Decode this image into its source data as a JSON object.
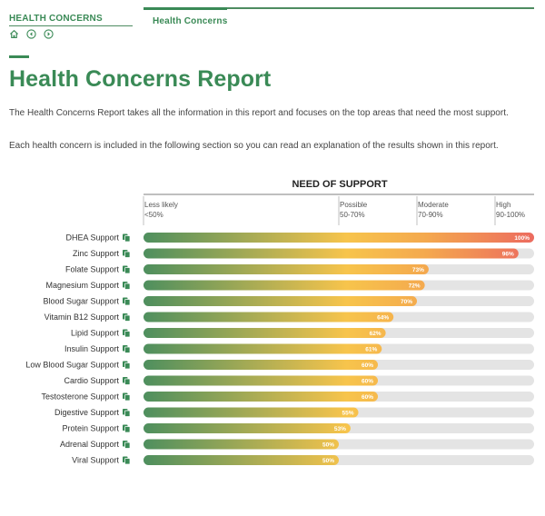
{
  "nav": {
    "section_title": "HEALTH CONCERNS",
    "tab_title": "Health Concerns",
    "icons": [
      "home-icon",
      "prev-icon",
      "next-icon"
    ]
  },
  "page": {
    "title": "Health Concerns Report",
    "paragraph1": "The Health Concerns Report takes all the information in this report and focuses on the top areas that need the most support.",
    "paragraph2": "Each health concern is included in the following section so you can read an explanation of the results shown in this report."
  },
  "colors": {
    "brand_green": "#3a8a56",
    "bar_low": "#4e8f5e",
    "bar_mid": "#f7c44c",
    "bar_high": "#ec6b5f",
    "track": "#e4e4e4"
  },
  "chart_data": {
    "type": "bar",
    "orientation": "horizontal",
    "title": "NEED OF SUPPORT",
    "xlim": [
      0,
      100
    ],
    "bands": [
      {
        "name": "Less likely",
        "range_label": "<50%",
        "start": 0
      },
      {
        "name": "Possible",
        "range_label": "50-70%",
        "start": 50
      },
      {
        "name": "Moderate",
        "range_label": "70-90%",
        "start": 70
      },
      {
        "name": "High",
        "range_label": "90-100%",
        "start": 90
      }
    ],
    "categories": [
      "DHEA Support",
      "Zinc Support",
      "Folate Support",
      "Magnesium Support",
      "Blood Sugar Support",
      "Vitamin B12 Support",
      "Lipid Support",
      "Insulin Support",
      "Low Blood Sugar Support",
      "Cardio Support",
      "Testosterone Support",
      "Digestive Support",
      "Protein Support",
      "Adrenal Support",
      "Viral Support"
    ],
    "values": [
      100,
      96,
      73,
      72,
      70,
      64,
      62,
      61,
      60,
      60,
      60,
      55,
      53,
      50,
      50
    ],
    "value_suffix": "%"
  }
}
